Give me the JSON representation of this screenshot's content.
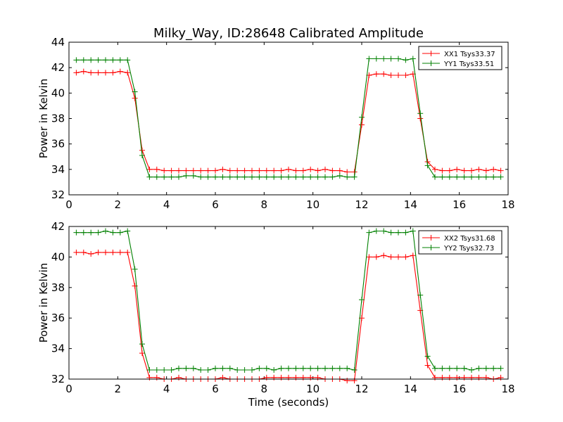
{
  "chart_data": {
    "type": "line",
    "title": "Milky_Way, ID:28648 Calibrated Amplitude",
    "xlabel": "Time (seconds)",
    "panels": [
      {
        "ylabel": "Power in Kelvin",
        "xlim": [
          0,
          18
        ],
        "ylim": [
          32,
          44
        ],
        "xticks": [
          0,
          2,
          4,
          6,
          8,
          10,
          12,
          14,
          16,
          18
        ],
        "yticks": [
          32,
          34,
          36,
          38,
          40,
          42,
          44
        ],
        "legend_position": "top-right",
        "x": [
          0.3,
          0.6,
          0.9,
          1.2,
          1.5,
          1.8,
          2.1,
          2.4,
          2.7,
          3.0,
          3.3,
          3.6,
          3.9,
          4.2,
          4.5,
          4.8,
          5.1,
          5.4,
          5.7,
          6.0,
          6.3,
          6.6,
          6.9,
          7.2,
          7.5,
          7.8,
          8.1,
          8.4,
          8.7,
          9.0,
          9.3,
          9.6,
          9.9,
          10.2,
          10.5,
          10.8,
          11.1,
          11.4,
          11.7,
          12.0,
          12.3,
          12.6,
          12.9,
          13.2,
          13.5,
          13.8,
          14.1,
          14.4,
          14.7,
          15.0,
          15.3,
          15.6,
          15.9,
          16.2,
          16.5,
          16.8,
          17.1,
          17.4,
          17.7
        ],
        "series": [
          {
            "name": "XX1 Tsys33.37",
            "color": "#ff0000",
            "values": [
              41.6,
              41.7,
              41.6,
              41.6,
              41.6,
              41.6,
              41.7,
              41.6,
              39.6,
              35.5,
              34.0,
              34.0,
              33.9,
              33.9,
              33.9,
              33.9,
              33.9,
              33.9,
              33.9,
              33.9,
              34.0,
              33.9,
              33.9,
              33.9,
              33.9,
              33.9,
              33.9,
              33.9,
              33.9,
              34.0,
              33.9,
              33.9,
              34.0,
              33.9,
              34.0,
              33.9,
              33.9,
              33.8,
              33.8,
              37.5,
              41.4,
              41.5,
              41.5,
              41.4,
              41.4,
              41.4,
              41.5,
              38.0,
              34.6,
              34.0,
              33.9,
              33.9,
              34.0,
              33.9,
              33.9,
              34.0,
              33.9,
              34.0,
              33.9
            ]
          },
          {
            "name": "YY1 Tsys33.51",
            "color": "#008000",
            "values": [
              42.6,
              42.6,
              42.6,
              42.6,
              42.6,
              42.6,
              42.6,
              42.6,
              40.1,
              35.1,
              33.4,
              33.4,
              33.4,
              33.4,
              33.4,
              33.5,
              33.5,
              33.4,
              33.4,
              33.4,
              33.4,
              33.4,
              33.4,
              33.4,
              33.4,
              33.4,
              33.4,
              33.4,
              33.4,
              33.4,
              33.4,
              33.4,
              33.4,
              33.4,
              33.4,
              33.4,
              33.5,
              33.4,
              33.4,
              38.1,
              42.7,
              42.7,
              42.7,
              42.7,
              42.7,
              42.6,
              42.7,
              38.4,
              34.3,
              33.4,
              33.4,
              33.4,
              33.4,
              33.4,
              33.4,
              33.4,
              33.4,
              33.4,
              33.4
            ]
          }
        ]
      },
      {
        "ylabel": "Power in Kelvin",
        "xlim": [
          0,
          18
        ],
        "ylim": [
          32,
          42
        ],
        "xticks": [
          0,
          2,
          4,
          6,
          8,
          10,
          12,
          14,
          16,
          18
        ],
        "yticks": [
          32,
          34,
          36,
          38,
          40,
          42
        ],
        "legend_position": "top-right",
        "x": [
          0.3,
          0.6,
          0.9,
          1.2,
          1.5,
          1.8,
          2.1,
          2.4,
          2.7,
          3.0,
          3.3,
          3.6,
          3.9,
          4.2,
          4.5,
          4.8,
          5.1,
          5.4,
          5.7,
          6.0,
          6.3,
          6.6,
          6.9,
          7.2,
          7.5,
          7.8,
          8.1,
          8.4,
          8.7,
          9.0,
          9.3,
          9.6,
          9.9,
          10.2,
          10.5,
          10.8,
          11.1,
          11.4,
          11.7,
          12.0,
          12.3,
          12.6,
          12.9,
          13.2,
          13.5,
          13.8,
          14.1,
          14.4,
          14.7,
          15.0,
          15.3,
          15.6,
          15.9,
          16.2,
          16.5,
          16.8,
          17.1,
          17.4,
          17.7
        ],
        "series": [
          {
            "name": "XX2 Tsys31.68",
            "color": "#ff0000",
            "values": [
              40.3,
              40.3,
              40.2,
              40.3,
              40.3,
              40.3,
              40.3,
              40.3,
              38.1,
              33.7,
              32.1,
              32.1,
              32.0,
              32.0,
              32.1,
              32.0,
              32.0,
              32.0,
              32.0,
              32.0,
              32.1,
              32.0,
              32.0,
              32.0,
              32.0,
              32.0,
              32.1,
              32.1,
              32.1,
              32.1,
              32.1,
              32.1,
              32.1,
              32.1,
              32.0,
              32.0,
              32.0,
              31.9,
              31.9,
              36.0,
              40.0,
              40.0,
              40.1,
              40.0,
              40.0,
              40.0,
              40.1,
              36.5,
              32.9,
              32.1,
              32.1,
              32.1,
              32.1,
              32.1,
              32.1,
              32.1,
              32.1,
              32.0,
              32.1
            ]
          },
          {
            "name": "YY2 Tsys32.73",
            "color": "#008000",
            "values": [
              41.6,
              41.6,
              41.6,
              41.6,
              41.7,
              41.6,
              41.6,
              41.7,
              39.2,
              34.3,
              32.6,
              32.6,
              32.6,
              32.6,
              32.7,
              32.7,
              32.7,
              32.6,
              32.6,
              32.7,
              32.7,
              32.7,
              32.6,
              32.6,
              32.6,
              32.7,
              32.7,
              32.6,
              32.7,
              32.7,
              32.7,
              32.7,
              32.7,
              32.7,
              32.7,
              32.7,
              32.7,
              32.7,
              32.6,
              37.2,
              41.6,
              41.7,
              41.7,
              41.6,
              41.6,
              41.6,
              41.7,
              37.5,
              33.5,
              32.7,
              32.7,
              32.7,
              32.7,
              32.7,
              32.6,
              32.7,
              32.7,
              32.7,
              32.7
            ]
          }
        ]
      }
    ]
  }
}
